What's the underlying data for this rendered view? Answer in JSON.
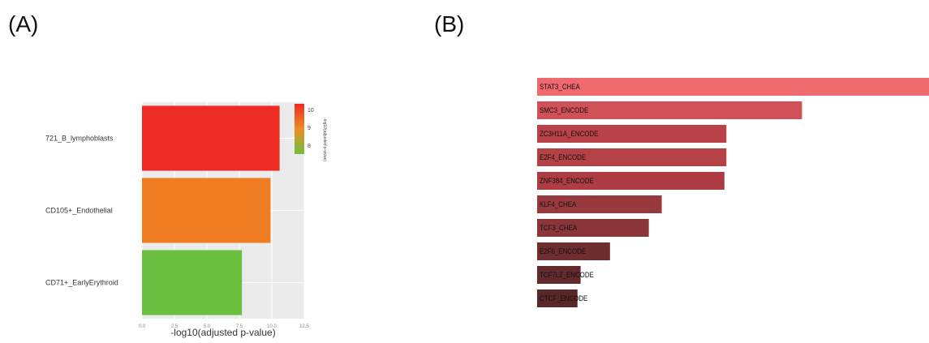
{
  "panels": {
    "a_label": "(A)",
    "b_label": "(B)"
  },
  "chart_data": [
    {
      "type": "bar",
      "orientation": "horizontal",
      "categories": [
        "721_B_lymphoblasts",
        "CD105+_Endothelial",
        "CD71+_EarlyErythroid"
      ],
      "values": [
        10.6,
        9.9,
        7.7
      ],
      "bar_colors": [
        "#ee2a24",
        "#ee7c22",
        "#6cc040"
      ],
      "xlabel": "-log10(adjusted p-value)",
      "xlim": [
        0,
        12.5
      ],
      "xticks": [
        "0.0",
        "2.5",
        "5.0",
        "7.5",
        "10.0",
        "12.5"
      ],
      "grid": true,
      "background": "#ebebeb",
      "legend": {
        "title": "-log10(adjusted p-value)",
        "placement": "right",
        "ticks": [
          "10",
          "9",
          "8"
        ],
        "colors": [
          "#ee2a24",
          "#ef8d23",
          "#6cc040"
        ]
      }
    },
    {
      "type": "bar",
      "orientation": "horizontal",
      "categories": [
        "STAT3_CHEA",
        "SMC3_ENCODE",
        "ZC3H11A_ENCODE",
        "E2F4_ENCODE",
        "ZNF384_ENCODE",
        "KLF4_CHEA",
        "TCF3_CHEA",
        "E2F6_ENCODE",
        "TCF7L2_ENCODE",
        "CTCF_ENCODE"
      ],
      "values": [
        100,
        67.6,
        48.3,
        48.3,
        47.8,
        31.8,
        28.5,
        18.6,
        11.1,
        10.3
      ],
      "bar_colors": [
        "#ee6a6e",
        "#d25057",
        "#b84248",
        "#b34146",
        "#ad3d43",
        "#97393d",
        "#8a3538",
        "#6f2d30",
        "#632a2d",
        "#5a2729"
      ],
      "grid": false
    }
  ]
}
